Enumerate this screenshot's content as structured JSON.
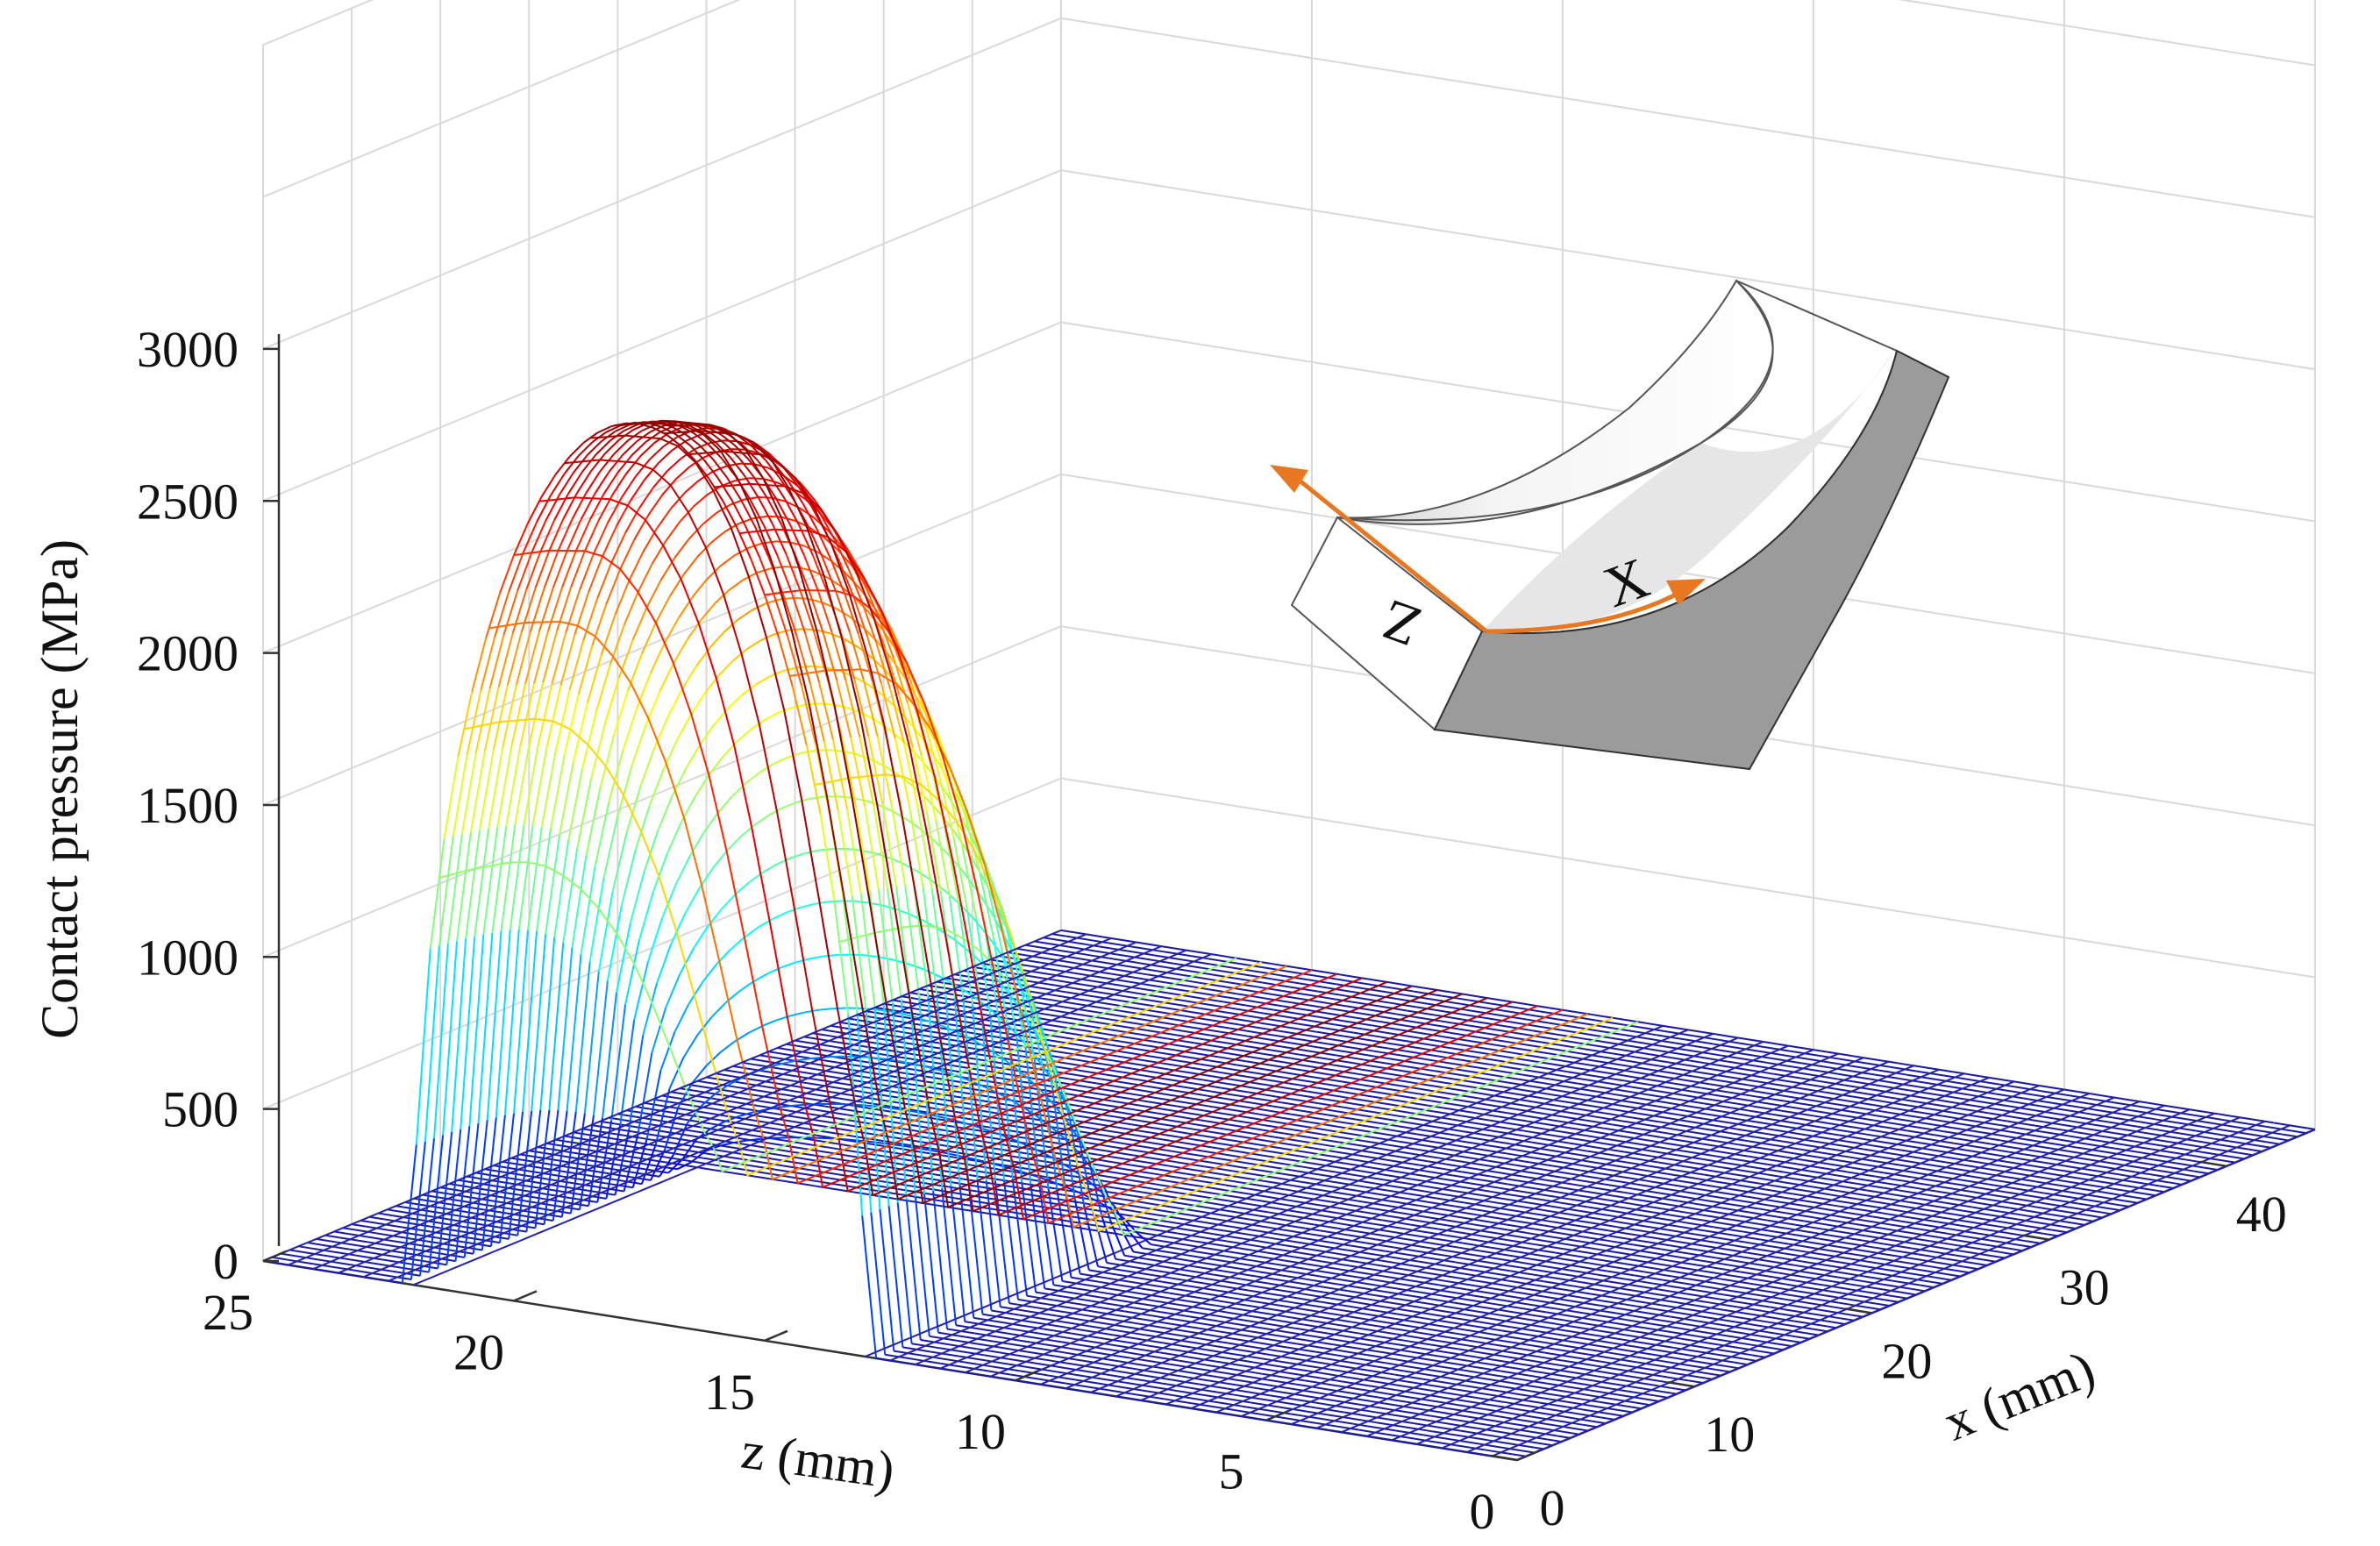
{
  "chart_data": {
    "type": "surface",
    "render": "3d-mesh",
    "zlabel": "Contact pressure (MPa)",
    "xlabel_z": "z (mm)",
    "xlabel_x": "x (mm)",
    "z_ticks": [
      "25",
      "20",
      "15",
      "10",
      "5",
      "0"
    ],
    "x_ticks": [
      "0",
      "10",
      "20",
      "30",
      "40"
    ],
    "p_ticks": [
      "0",
      "500",
      "1000",
      "1500",
      "2000",
      "2500",
      "3000"
    ],
    "z_range": [
      0,
      25
    ],
    "x_range": [
      0,
      45
    ],
    "p_range": [
      0,
      3000
    ],
    "grid": true,
    "colormap": "jet",
    "peak_pressure": 3000,
    "contact_center_z": 17.5,
    "contact_half_width_z": 4.5,
    "contact_x_range": [
      0,
      16
    ],
    "series": [
      {
        "x": [
          0,
          1,
          2,
          3,
          4,
          5,
          6,
          7,
          8,
          9,
          10,
          11,
          12,
          13,
          14,
          15,
          16
        ],
        "peak_values": [
          2950,
          2930,
          2910,
          2880,
          2850,
          2800,
          2720,
          2600,
          2450,
          2260,
          2030,
          1760,
          1430,
          1060,
          680,
          330,
          60
        ]
      }
    ],
    "inset": {
      "axis_labels": [
        "Z",
        "X"
      ],
      "arrow_color": "#e87722"
    }
  }
}
